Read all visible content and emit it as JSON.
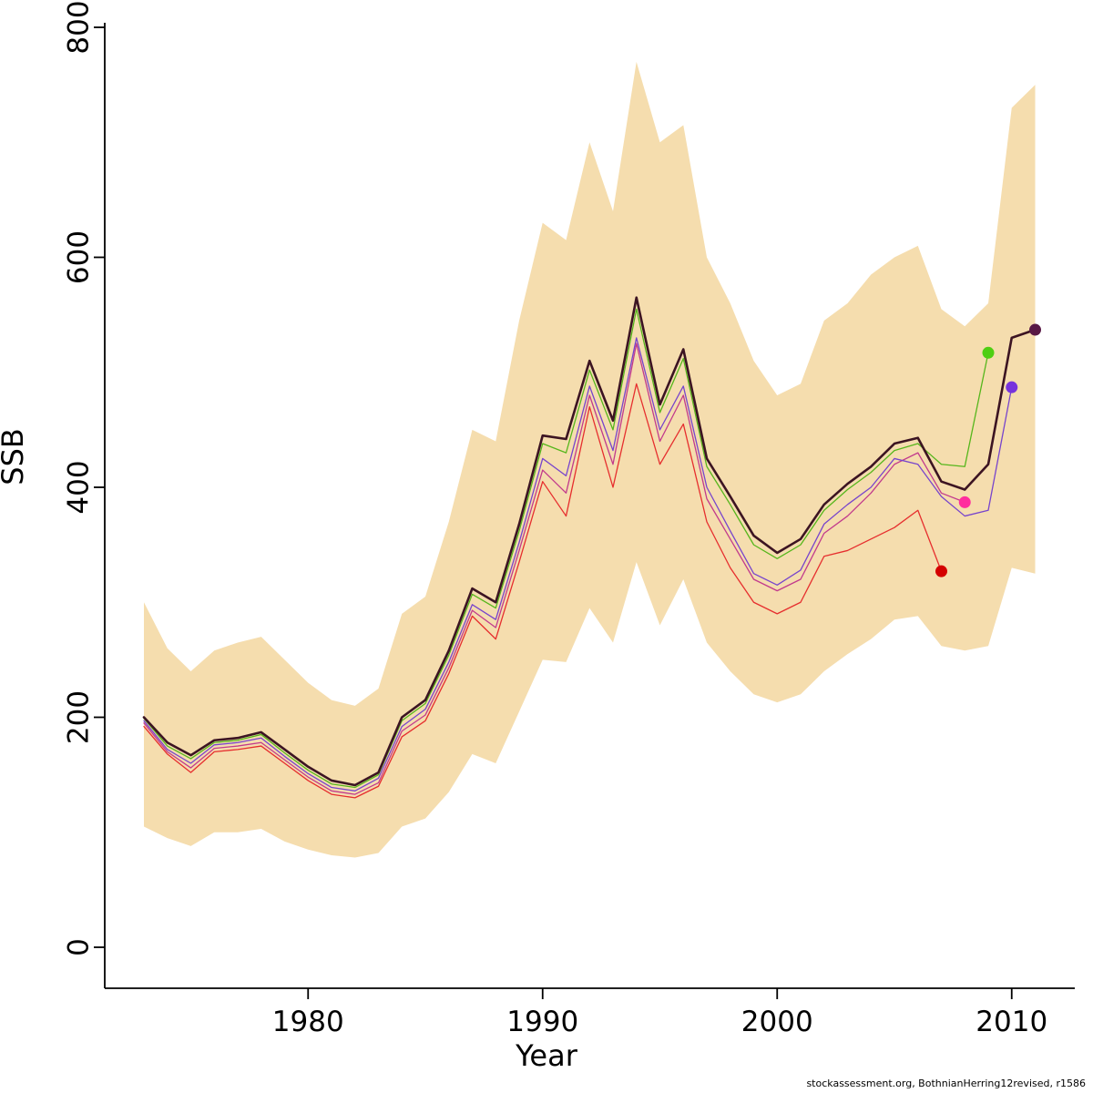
{
  "footer": {
    "credit": "stockassessment.org, BothnianHerring12revised, r1586"
  },
  "chart_data": {
    "type": "line",
    "title": "",
    "xlabel": "Year",
    "ylabel": "SSB",
    "xlim": [
      1972.3,
      2012.5
    ],
    "ylim": [
      0,
      800
    ],
    "x_ticks": [
      1980,
      1990,
      2000,
      2010
    ],
    "y_ticks": [
      0,
      200,
      400,
      600,
      800
    ],
    "grid": false,
    "legend": "none",
    "years": [
      1973,
      1974,
      1975,
      1976,
      1977,
      1978,
      1979,
      1980,
      1981,
      1982,
      1983,
      1984,
      1985,
      1986,
      1987,
      1988,
      1989,
      1990,
      1991,
      1992,
      1993,
      1994,
      1995,
      1996,
      1997,
      1998,
      1999,
      2000,
      2001,
      2002,
      2003,
      2004,
      2005,
      2006,
      2007,
      2008,
      2009,
      2010,
      2011
    ],
    "band": {
      "name": "confidence-interval",
      "color": "#f5ddae",
      "lower": [
        105,
        95,
        88,
        100,
        100,
        103,
        92,
        85,
        80,
        78,
        82,
        105,
        112,
        135,
        168,
        160,
        205,
        250,
        248,
        295,
        265,
        335,
        280,
        320,
        265,
        240,
        220,
        213,
        220,
        240,
        255,
        268,
        285,
        288,
        262,
        258,
        262,
        330,
        325
      ],
      "upper": [
        300,
        260,
        240,
        258,
        265,
        270,
        250,
        230,
        215,
        210,
        225,
        290,
        305,
        370,
        450,
        440,
        545,
        630,
        615,
        700,
        640,
        770,
        700,
        715,
        600,
        560,
        510,
        480,
        490,
        545,
        560,
        585,
        600,
        610,
        555,
        540,
        560,
        730,
        750
      ]
    },
    "series": [
      {
        "name": "retro-2007",
        "color": "#e62e2e",
        "dot_color": "#d40000",
        "width": 1.3,
        "end_dot": true,
        "values": [
          192,
          168,
          152,
          170,
          172,
          175,
          160,
          145,
          133,
          130,
          140,
          183,
          197,
          238,
          288,
          268,
          335,
          405,
          375,
          470,
          400,
          490,
          420,
          455,
          370,
          330,
          300,
          290,
          300,
          340,
          345,
          355,
          365,
          380,
          327
        ]
      },
      {
        "name": "retro-2008",
        "color": "#c23a8c",
        "dot_color": "#ff2e9e",
        "width": 1.3,
        "end_dot": true,
        "values": [
          195,
          170,
          156,
          173,
          175,
          178,
          163,
          148,
          136,
          133,
          143,
          188,
          202,
          243,
          293,
          278,
          345,
          415,
          395,
          480,
          420,
          525,
          440,
          480,
          390,
          355,
          320,
          310,
          320,
          360,
          375,
          395,
          420,
          430,
          395,
          387
        ]
      },
      {
        "name": "retro-2010",
        "color": "#7744cc",
        "dot_color": "#7733dd",
        "width": 1.3,
        "end_dot": true,
        "values": [
          197,
          172,
          160,
          176,
          178,
          182,
          166,
          151,
          139,
          136,
          147,
          192,
          207,
          248,
          298,
          285,
          352,
          425,
          410,
          488,
          432,
          530,
          450,
          488,
          400,
          362,
          325,
          315,
          328,
          368,
          385,
          400,
          425,
          420,
          392,
          375,
          380,
          487
        ]
      },
      {
        "name": "retro-2009",
        "color": "#56b61c",
        "dot_color": "#4fce12",
        "width": 1.3,
        "end_dot": true,
        "values": [
          199,
          175,
          164,
          178,
          180,
          185,
          169,
          154,
          142,
          139,
          150,
          197,
          212,
          254,
          307,
          295,
          362,
          438,
          430,
          502,
          450,
          555,
          465,
          512,
          418,
          385,
          350,
          338,
          350,
          380,
          398,
          413,
          432,
          438,
          420,
          418,
          517
        ]
      },
      {
        "name": "final-2011",
        "color": "#3c1422",
        "dot_color": "#581845",
        "width": 2.6,
        "end_dot": true,
        "values": [
          200,
          178,
          167,
          180,
          182,
          187,
          172,
          157,
          145,
          141,
          152,
          200,
          215,
          258,
          312,
          300,
          368,
          445,
          442,
          510,
          458,
          565,
          472,
          520,
          425,
          392,
          358,
          343,
          355,
          385,
          403,
          418,
          438,
          443,
          405,
          398,
          420,
          530,
          537
        ]
      }
    ]
  }
}
